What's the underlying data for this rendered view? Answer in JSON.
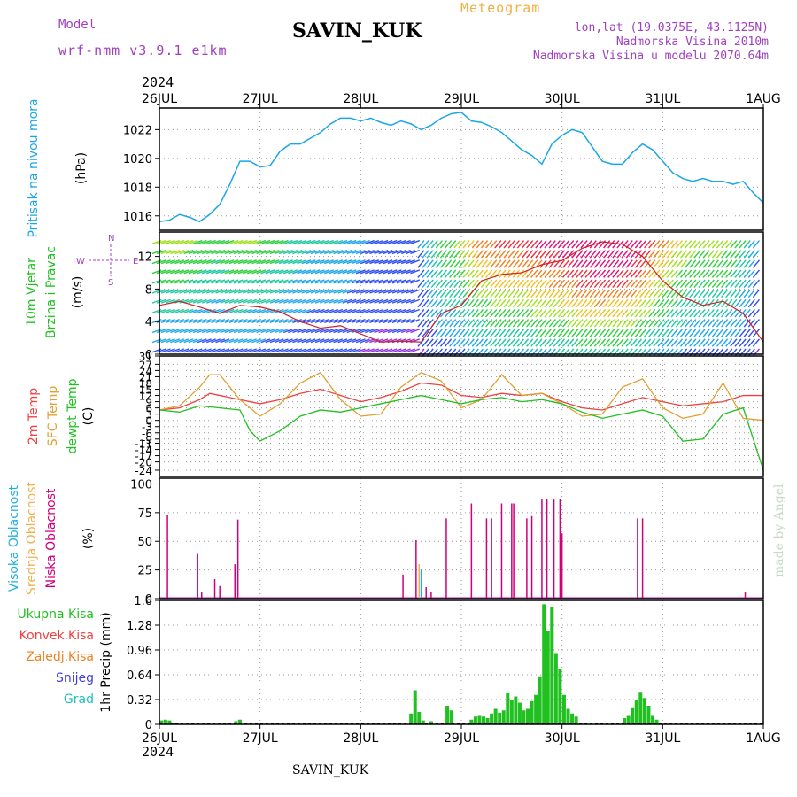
{
  "header": {
    "model_label": "Model",
    "model_name": "wrf-nmm_v3.9.1 e1km",
    "station": "SAVIN_KUK",
    "product": "Meteogram",
    "lonlat": "lon,lat (19.0375E, 43.1125N)",
    "elevation": "Nadmorska Visina 2010m",
    "model_elevation": "Nadmorska Visina u modelu 2070.64m",
    "year": "2024",
    "footer_station": "SAVIN_KUK",
    "credit": "made by Angel"
  },
  "colors": {
    "pressure": "#1aa6e8",
    "temp2m": "#f04040",
    "sfc": "#e0a030",
    "dewpt": "#20c020",
    "low_cloud": "#d0007a",
    "mid_cloud": "#f0b050",
    "high_cloud": "#20b0e0",
    "precip": "#20c020",
    "grid": "#999999"
  },
  "chart_data": [
    {
      "type": "line",
      "title": "",
      "ylabel_parts": [
        "Pritisak na nivou mora",
        "(hPa)"
      ],
      "x_ticks": [
        "26JUL",
        "27JUL",
        "28JUL",
        "29JUL",
        "30JUL",
        "31JUL",
        "1AUG"
      ],
      "ylim": [
        1015,
        1023.5
      ],
      "y_ticks": [
        1016,
        1018,
        1020,
        1022
      ],
      "grid": true,
      "series": [
        {
          "key": "pressure",
          "x": [
            0,
            0.1,
            0.2,
            0.3,
            0.4,
            0.5,
            0.6,
            0.7,
            0.8,
            0.9,
            1.0,
            1.1,
            1.2,
            1.3,
            1.4,
            1.5,
            1.6,
            1.7,
            1.8,
            1.9,
            2.0,
            2.1,
            2.2,
            2.3,
            2.4,
            2.5,
            2.6,
            2.7,
            2.8,
            2.9,
            3.0,
            3.1,
            3.2,
            3.3,
            3.4,
            3.5,
            3.6,
            3.7,
            3.8,
            3.9,
            4.0,
            4.1,
            4.2,
            4.3,
            4.4,
            4.5,
            4.6,
            4.7,
            4.8,
            4.9,
            5.0,
            5.1,
            5.2,
            5.3,
            5.4,
            5.5,
            5.6,
            5.7,
            5.8,
            5.9,
            6.0
          ],
          "values": [
            1015.6,
            1015.7,
            1016.1,
            1015.9,
            1015.6,
            1016.1,
            1016.8,
            1018.2,
            1019.8,
            1019.8,
            1019.4,
            1019.5,
            1020.5,
            1021.0,
            1021.0,
            1021.4,
            1021.8,
            1022.4,
            1022.8,
            1022.8,
            1022.6,
            1022.8,
            1022.5,
            1022.3,
            1022.6,
            1022.4,
            1022.0,
            1022.3,
            1022.8,
            1023.1,
            1023.2,
            1022.6,
            1022.5,
            1022.2,
            1021.8,
            1021.2,
            1020.6,
            1020.2,
            1019.6,
            1021.0,
            1021.6,
            1022.0,
            1021.8,
            1020.8,
            1019.8,
            1019.6,
            1019.6,
            1020.4,
            1021.0,
            1020.6,
            1019.8,
            1019.0,
            1018.6,
            1018.4,
            1018.6,
            1018.4,
            1018.4,
            1018.2,
            1018.4,
            1017.6,
            1016.9
          ]
        }
      ]
    },
    {
      "type": "scatter",
      "title": "",
      "ylabel_parts": [
        "10m Vjetar",
        "Brzina i Pravac",
        "(m/s)"
      ],
      "compass": [
        "W",
        "<",
        "-",
        "|",
        "-",
        ">",
        "E",
        "N",
        "S"
      ],
      "ylim": [
        0,
        15
      ],
      "y_ticks": [
        0,
        4,
        8,
        12
      ],
      "grid": true,
      "series": [
        {
          "key": "speed",
          "x": [
            0,
            0.2,
            0.4,
            0.6,
            0.8,
            1.0,
            1.2,
            1.4,
            1.6,
            1.8,
            2.0,
            2.2,
            2.4,
            2.6,
            2.8,
            3.0,
            3.2,
            3.4,
            3.6,
            3.8,
            4.0,
            4.2,
            4.4,
            4.6,
            4.8,
            5.0,
            5.2,
            5.4,
            5.6,
            5.8,
            6.0
          ],
          "values": [
            6.0,
            6.5,
            5.8,
            5.0,
            6.0,
            5.8,
            5.2,
            4.0,
            3.2,
            3.5,
            2.5,
            1.5,
            1.6,
            1.5,
            5.0,
            6.0,
            9.0,
            9.8,
            10.0,
            11.0,
            11.5,
            13.0,
            13.8,
            13.5,
            12.0,
            9.0,
            7.0,
            6.0,
            6.5,
            5.0,
            1.5
          ]
        }
      ]
    },
    {
      "type": "line",
      "title": "",
      "ylabel_parts": [
        "2m Temp",
        "SFC Temp",
        "dewpt Temp",
        "(C)"
      ],
      "ylim": [
        -27,
        31
      ],
      "y_ticks": [
        31,
        27,
        24,
        21,
        18,
        15,
        12,
        9,
        6,
        3,
        0,
        -3,
        -6,
        -9,
        -11,
        -14,
        -17,
        -20,
        -24
      ],
      "grid": true,
      "series": [
        {
          "key": "temp2m",
          "x": [
            0,
            0.2,
            0.4,
            0.5,
            0.6,
            0.8,
            1.0,
            1.2,
            1.4,
            1.6,
            1.8,
            2.0,
            2.2,
            2.4,
            2.6,
            2.8,
            3.0,
            3.2,
            3.4,
            3.6,
            3.8,
            4.0,
            4.2,
            4.4,
            4.6,
            4.8,
            5.0,
            5.2,
            5.4,
            5.6,
            5.8,
            6.0
          ],
          "values": [
            5,
            6,
            10,
            13,
            12,
            10,
            8,
            10,
            13,
            15,
            12,
            9,
            11,
            14,
            18,
            17,
            12,
            11,
            13,
            12,
            13,
            9,
            6,
            5,
            8,
            11,
            9,
            7,
            8,
            9,
            12,
            12
          ]
        },
        {
          "key": "sfc",
          "x": [
            0,
            0.2,
            0.4,
            0.5,
            0.6,
            0.8,
            1.0,
            1.2,
            1.4,
            1.6,
            1.8,
            2.0,
            2.2,
            2.4,
            2.6,
            2.8,
            3.0,
            3.2,
            3.4,
            3.6,
            3.8,
            4.0,
            4.2,
            4.4,
            4.6,
            4.8,
            5.0,
            5.2,
            5.4,
            5.6,
            5.8,
            6.0
          ],
          "values": [
            5,
            7,
            16,
            22,
            22,
            10,
            2,
            8,
            18,
            23,
            10,
            2,
            3,
            16,
            23,
            19,
            6,
            10,
            22,
            12,
            13,
            8,
            2,
            3,
            16,
            20,
            6,
            1,
            3,
            18,
            1,
            0
          ]
        },
        {
          "key": "dewpt",
          "x": [
            0,
            0.2,
            0.4,
            0.6,
            0.8,
            0.9,
            1.0,
            1.2,
            1.4,
            1.6,
            1.8,
            2.0,
            2.2,
            2.4,
            2.6,
            2.8,
            3.0,
            3.2,
            3.4,
            3.6,
            3.8,
            4.0,
            4.2,
            4.4,
            4.6,
            4.8,
            5.0,
            5.2,
            5.4,
            5.6,
            5.8,
            6.0
          ],
          "values": [
            5,
            4,
            7,
            6,
            5,
            -5,
            -10,
            -5,
            2,
            5,
            4,
            6,
            8,
            10,
            12,
            10,
            8,
            10,
            11,
            9,
            10,
            8,
            4,
            1,
            3,
            5,
            2,
            -10,
            -9,
            3,
            6,
            -24
          ]
        }
      ]
    },
    {
      "type": "bar",
      "title": "",
      "ylabel_parts": [
        "Visoka Oblacnost",
        "Srednja Oblacnost",
        "Niska Oblacnost",
        "(%)"
      ],
      "ylim": [
        0,
        105
      ],
      "y_ticks": [
        0,
        25,
        50,
        75,
        100
      ],
      "grid": true,
      "series": [
        {
          "key": "low_cloud",
          "x": [
            0.08,
            0.38,
            0.42,
            0.55,
            0.6,
            0.75,
            0.78,
            2.42,
            2.55,
            2.58,
            2.65,
            2.7,
            2.85,
            3.1,
            3.25,
            3.3,
            3.4,
            3.5,
            3.52,
            3.65,
            3.7,
            3.8,
            3.85,
            3.92,
            3.98,
            4.0,
            4.75,
            4.8,
            5.82
          ],
          "values": [
            73,
            39,
            6,
            17,
            11,
            30,
            69,
            21,
            51,
            30,
            10,
            6,
            70,
            83,
            70,
            70,
            83,
            83,
            83,
            70,
            72,
            87,
            87,
            87,
            87,
            57,
            70,
            70,
            6
          ]
        },
        {
          "key": "mid_cloud",
          "x": [
            2.58
          ],
          "values": [
            30
          ]
        },
        {
          "key": "high_cloud",
          "x": [
            2.6
          ],
          "values": [
            26
          ]
        }
      ]
    },
    {
      "type": "bar",
      "title": "",
      "ylabel_parts": [
        "1hr Precip (mm)"
      ],
      "legend": [
        "Ukupna Kisa",
        "Konvek.Kisa",
        "Zaledj.Kisa",
        "Snijeg",
        "Grad"
      ],
      "ylim": [
        0,
        1.6
      ],
      "y_ticks": [
        0,
        0.32,
        0.64,
        0.96,
        1.28,
        1.6
      ],
      "grid": true,
      "series": [
        {
          "key": "precip",
          "x": [
            0.02,
            0.06,
            0.1,
            0.14,
            0.18,
            0.76,
            0.8,
            2.5,
            2.54,
            2.58,
            2.62,
            2.7,
            2.86,
            2.9,
            3.1,
            3.14,
            3.18,
            3.22,
            3.26,
            3.3,
            3.34,
            3.38,
            3.42,
            3.46,
            3.5,
            3.54,
            3.58,
            3.62,
            3.66,
            3.7,
            3.74,
            3.78,
            3.82,
            3.86,
            3.9,
            3.94,
            3.98,
            4.02,
            4.06,
            4.1,
            4.14,
            4.62,
            4.66,
            4.7,
            4.74,
            4.78,
            4.82,
            4.86,
            4.9,
            4.94
          ],
          "values": [
            0.05,
            0.06,
            0.05,
            0.02,
            0.01,
            0.04,
            0.06,
            0.14,
            0.44,
            0.16,
            0.05,
            0.04,
            0.24,
            0.18,
            0.06,
            0.1,
            0.12,
            0.1,
            0.08,
            0.14,
            0.2,
            0.15,
            0.18,
            0.4,
            0.32,
            0.36,
            0.28,
            0.18,
            0.2,
            0.3,
            0.38,
            0.62,
            1.55,
            1.2,
            1.52,
            0.92,
            0.72,
            0.38,
            0.2,
            0.14,
            0.1,
            0.08,
            0.12,
            0.22,
            0.32,
            0.42,
            0.34,
            0.24,
            0.12,
            0.06
          ]
        }
      ]
    }
  ]
}
